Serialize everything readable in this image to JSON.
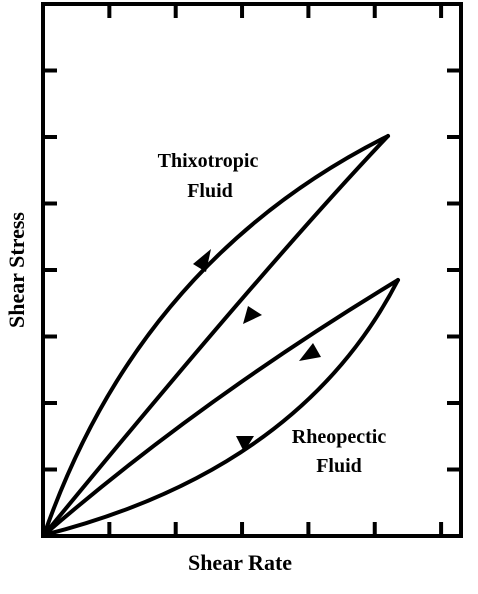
{
  "axes": {
    "x_title": "Shear Rate",
    "y_title": "Shear Stress",
    "x_tick_count": 6,
    "y_tick_count": 7
  },
  "curves": {
    "thixotropic": {
      "label_line1": "Thixotropic",
      "label_line2": "Fluid"
    },
    "rheopectic": {
      "label_line1": "Rheopectic",
      "label_line2": "Fluid"
    }
  }
}
